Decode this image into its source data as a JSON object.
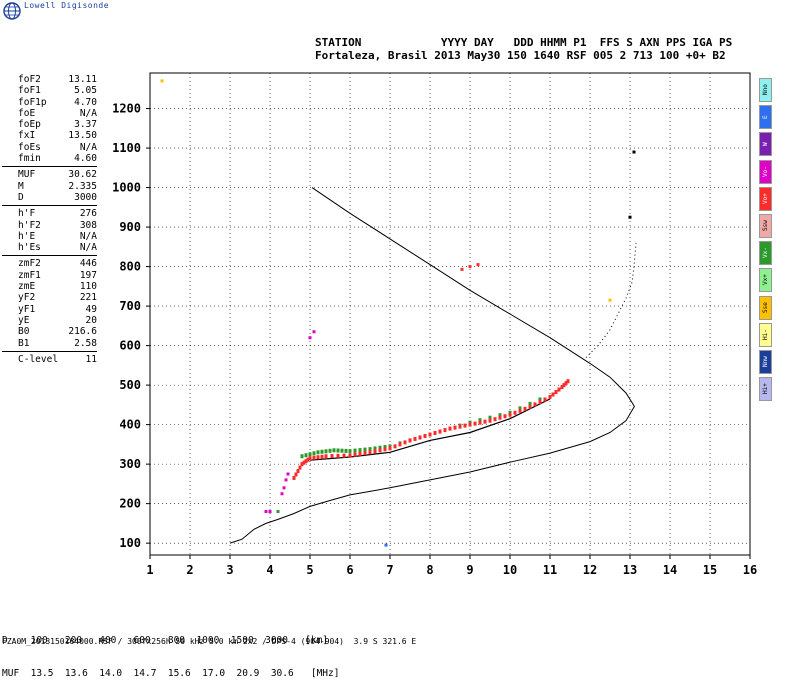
{
  "brand": "Lowell Digisonde",
  "header": {
    "line1": "STATION            YYYY DAY   DDD HHMM P1  FFS S AXN PPS IGA PS",
    "line2": "Fortaleza, Brasil 2013 May30 150 1640 RSF 005 2 713 100 +0+ B2"
  },
  "params": {
    "group1": [
      {
        "k": "foF2",
        "v": "13.11"
      },
      {
        "k": "foF1",
        "v": "5.05"
      },
      {
        "k": "foF1p",
        "v": "4.70"
      },
      {
        "k": "foE",
        "v": "N/A"
      },
      {
        "k": "foEp",
        "v": "3.37"
      },
      {
        "k": "fxI",
        "v": "13.50"
      },
      {
        "k": "foEs",
        "v": "N/A"
      },
      {
        "k": "fmin",
        "v": "4.60"
      }
    ],
    "group2": [
      {
        "k": "MUF",
        "v": "30.62"
      },
      {
        "k": "M",
        "v": "2.335"
      },
      {
        "k": "D",
        "v": "3000"
      }
    ],
    "group3": [
      {
        "k": "h'F",
        "v": "276"
      },
      {
        "k": "h'F2",
        "v": "308"
      },
      {
        "k": "h'E",
        "v": "N/A"
      },
      {
        "k": "h'Es",
        "v": "N/A"
      }
    ],
    "group4": [
      {
        "k": "zmF2",
        "v": "446"
      },
      {
        "k": "zmF1",
        "v": "197"
      },
      {
        "k": "zmE",
        "v": "110"
      },
      {
        "k": "yF2",
        "v": "221"
      },
      {
        "k": "yF1",
        "v": "49"
      },
      {
        "k": "yE",
        "v": "20"
      },
      {
        "k": "B0",
        "v": "216.6"
      },
      {
        "k": "B1",
        "v": "2.58"
      }
    ],
    "group5": [
      {
        "k": "C-level",
        "v": "11"
      }
    ]
  },
  "legend": [
    {
      "label": "Nno",
      "color": "#8ff0f0"
    },
    {
      "label": "E",
      "color": "#2e6ff0"
    },
    {
      "label": "W",
      "color": "#7a1fb0"
    },
    {
      "label": "Vo-",
      "color": "#e000c8"
    },
    {
      "label": "Vo+",
      "color": "#ff2a2a"
    },
    {
      "label": "Ssw",
      "color": "#f0a8a8"
    },
    {
      "label": "Vx-",
      "color": "#2a9a2a"
    },
    {
      "label": "Vx+",
      "color": "#8ff08f"
    },
    {
      "label": "Sse",
      "color": "#ffc000"
    },
    {
      "label": "Hi-",
      "color": "#ffff90"
    },
    {
      "label": "Nnw",
      "color": "#1a3e9a"
    },
    {
      "label": "Hi+",
      "color": "#b8b8f0"
    }
  ],
  "muf_table": {
    "line1": "D    100   200   400   600   800  1000  1500  3000   [km]",
    "line2": "MUF  13.5  13.6  14.0  14.7  15.6  17.0  20.9  30.6   [MHz]"
  },
  "footer": "FZA0M_2013150164000.RSF / 300fx256h 50 kHz 5.0 km 2x2 / DPS-4 (904-904)  3.9 S 321.6 E",
  "chart_data": {
    "type": "scatter",
    "x_ticks": [
      "1",
      "2",
      "3",
      "4",
      "5",
      "6",
      "7",
      "8",
      "9",
      "10",
      "11",
      "12",
      "13",
      "14",
      "15",
      "16"
    ],
    "y_ticks": [
      "100",
      "200",
      "300",
      "400",
      "500",
      "600",
      "700",
      "800",
      "900",
      "1000",
      "1100",
      "1200"
    ],
    "xlim": [
      1,
      16
    ],
    "ylim": [
      70,
      1290
    ],
    "grid": true,
    "profile": [
      [
        3.0,
        100
      ],
      [
        3.3,
        110
      ],
      [
        3.6,
        135
      ],
      [
        3.9,
        150
      ],
      [
        4.2,
        160
      ],
      [
        4.6,
        175
      ],
      [
        5.0,
        193
      ],
      [
        5.5,
        208
      ],
      [
        6,
        222
      ],
      [
        7,
        240
      ],
      [
        8,
        260
      ],
      [
        9,
        280
      ],
      [
        10,
        305
      ],
      [
        11,
        328
      ],
      [
        12,
        357
      ],
      [
        12.5,
        380
      ],
      [
        12.9,
        410
      ],
      [
        13.11,
        446
      ],
      [
        12.9,
        480
      ],
      [
        12.5,
        520
      ],
      [
        12,
        555
      ],
      [
        11,
        620
      ],
      [
        10,
        680
      ],
      [
        9,
        740
      ],
      [
        8,
        805
      ],
      [
        7,
        870
      ],
      [
        6,
        935
      ],
      [
        5.05,
        1000
      ]
    ],
    "extension": [
      [
        11.9,
        570
      ],
      [
        12.2,
        600
      ],
      [
        12.5,
        640
      ],
      [
        12.7,
        680
      ],
      [
        12.9,
        720
      ],
      [
        13.05,
        760
      ],
      [
        13.1,
        800
      ],
      [
        13.15,
        860
      ]
    ],
    "ordinary_trace": [
      [
        4.6,
        265
      ],
      [
        4.8,
        300
      ],
      [
        5.0,
        315
      ],
      [
        5.4,
        320
      ],
      [
        6,
        322
      ],
      [
        6.5,
        330
      ],
      [
        7,
        340
      ],
      [
        7.5,
        360
      ],
      [
        8,
        375
      ],
      [
        8.5,
        390
      ],
      [
        9,
        400
      ],
      [
        9.5,
        410
      ],
      [
        10,
        425
      ],
      [
        10.5,
        445
      ],
      [
        11,
        470
      ],
      [
        11.3,
        495
      ],
      [
        11.5,
        515
      ]
    ],
    "extraordinary_trace": [
      [
        4.8,
        320
      ],
      [
        5.2,
        330
      ],
      [
        5.6,
        335
      ],
      [
        6.0,
        333
      ],
      [
        6.5,
        338
      ],
      [
        7.0,
        345
      ],
      [
        8.0,
        375
      ],
      [
        9.0,
        405
      ],
      [
        10.0,
        430
      ],
      [
        11.0,
        475
      ]
    ],
    "virtual_trace": [
      [
        5.0,
        310
      ],
      [
        6,
        318
      ],
      [
        7,
        330
      ],
      [
        8,
        360
      ],
      [
        9,
        380
      ],
      [
        10,
        415
      ],
      [
        11,
        465
      ]
    ],
    "scatter_points": [
      {
        "x": 4.3,
        "y": 225,
        "c": "#e000c8"
      },
      {
        "x": 4.35,
        "y": 240,
        "c": "#e000c8"
      },
      {
        "x": 4.4,
        "y": 260,
        "c": "#e000c8"
      },
      {
        "x": 4.45,
        "y": 275,
        "c": "#e000c8"
      },
      {
        "x": 3.9,
        "y": 180,
        "c": "#e000c8"
      },
      {
        "x": 4.0,
        "y": 180,
        "c": "#e000c8"
      },
      {
        "x": 4.2,
        "y": 180,
        "c": "#2a9a2a"
      },
      {
        "x": 5.0,
        "y": 620,
        "c": "#e000c8"
      },
      {
        "x": 5.1,
        "y": 635,
        "c": "#e000c8"
      },
      {
        "x": 8.8,
        "y": 793,
        "c": "#ff2a2a"
      },
      {
        "x": 9.0,
        "y": 800,
        "c": "#ff2a2a"
      },
      {
        "x": 9.2,
        "y": 805,
        "c": "#ff2a2a"
      },
      {
        "x": 12.5,
        "y": 715,
        "c": "#ffc000"
      },
      {
        "x": 1.3,
        "y": 1270,
        "c": "#ffc000"
      },
      {
        "x": 6.9,
        "y": 95,
        "c": "#2e6ff0"
      },
      {
        "x": 13.1,
        "y": 1090,
        "c": "#000000"
      },
      {
        "x": 13.0,
        "y": 925,
        "c": "#000000"
      }
    ]
  }
}
